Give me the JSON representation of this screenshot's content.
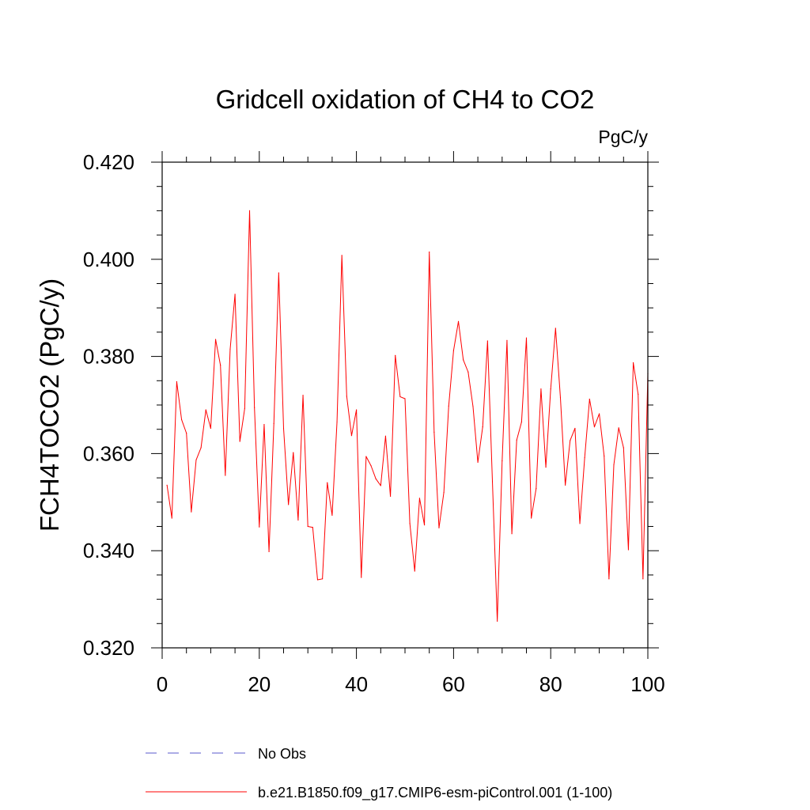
{
  "chart_data": {
    "type": "line",
    "title": "Gridcell oxidation of CH4 to CO2",
    "units": "PgC/y",
    "xlabel": "",
    "ylabel": "FCH4TOCO2  (PgC/y)",
    "xlim": [
      0,
      100
    ],
    "ylim": [
      0.32,
      0.42
    ],
    "xticks": [
      0,
      20,
      40,
      60,
      80,
      100
    ],
    "xtick_labels": [
      "0",
      "20",
      "40",
      "60",
      "80",
      "100"
    ],
    "yticks": [
      0.32,
      0.34,
      0.36,
      0.38,
      0.4,
      0.42
    ],
    "ytick_labels": [
      "0.320",
      "0.340",
      "0.360",
      "0.380",
      "0.400",
      "0.420"
    ],
    "grid": false,
    "legend_position": "bottom",
    "legend": [
      {
        "label": "No Obs",
        "color": "#5a5acd",
        "style": "dashed"
      },
      {
        "label": "b.e21.B1850.f09_g17.CMIP6-esm-piControl.001 (1-100)",
        "color": "#ff0000",
        "style": "solid"
      }
    ],
    "series": [
      {
        "name": "b.e21.B1850.f09_g17.CMIP6-esm-piControl.001 (1-100)",
        "color": "#ff0000",
        "x": [
          1,
          2,
          3,
          4,
          5,
          6,
          7,
          8,
          9,
          10,
          11,
          12,
          13,
          14,
          15,
          16,
          17,
          18,
          19,
          20,
          21,
          22,
          23,
          24,
          25,
          26,
          27,
          28,
          29,
          30,
          31,
          32,
          33,
          34,
          35,
          36,
          37,
          38,
          39,
          40,
          41,
          42,
          43,
          44,
          45,
          46,
          47,
          48,
          49,
          50,
          51,
          52,
          53,
          54,
          55,
          56,
          57,
          58,
          59,
          60,
          61,
          62,
          63,
          64,
          65,
          66,
          67,
          68,
          69,
          70,
          71,
          72,
          73,
          74,
          75,
          76,
          77,
          78,
          79,
          80,
          81,
          82,
          83,
          84,
          85,
          86,
          87,
          88,
          89,
          90,
          91,
          92,
          93,
          94,
          95,
          96,
          97,
          98,
          99,
          100
        ],
        "values": [
          0.3535,
          0.3467,
          0.3748,
          0.367,
          0.3642,
          0.348,
          0.3587,
          0.3612,
          0.369,
          0.3652,
          0.3835,
          0.3782,
          0.3555,
          0.3815,
          0.3928,
          0.3625,
          0.3693,
          0.41,
          0.3695,
          0.3449,
          0.366,
          0.3398,
          0.3662,
          0.3972,
          0.3652,
          0.3495,
          0.3602,
          0.3463,
          0.372,
          0.345,
          0.3448,
          0.334,
          0.3342,
          0.354,
          0.3473,
          0.3665,
          0.4008,
          0.3718,
          0.3637,
          0.369,
          0.3345,
          0.3594,
          0.3575,
          0.3548,
          0.3534,
          0.3636,
          0.3512,
          0.3802,
          0.3717,
          0.3713,
          0.3456,
          0.3358,
          0.3508,
          0.3453,
          0.4015,
          0.3644,
          0.3447,
          0.352,
          0.3698,
          0.3812,
          0.3872,
          0.3793,
          0.3768,
          0.3697,
          0.3582,
          0.3655,
          0.3832,
          0.3542,
          0.3255,
          0.3585,
          0.3833,
          0.3435,
          0.3628,
          0.3665,
          0.3838,
          0.3467,
          0.3528,
          0.3733,
          0.3572,
          0.3733,
          0.3858,
          0.3715,
          0.3535,
          0.3627,
          0.3652,
          0.3456,
          0.3592,
          0.3712,
          0.3655,
          0.3682,
          0.3595,
          0.3342,
          0.3577,
          0.3653,
          0.3612,
          0.3402,
          0.3787,
          0.3722,
          0.3342,
          0.3765
        ]
      }
    ]
  }
}
